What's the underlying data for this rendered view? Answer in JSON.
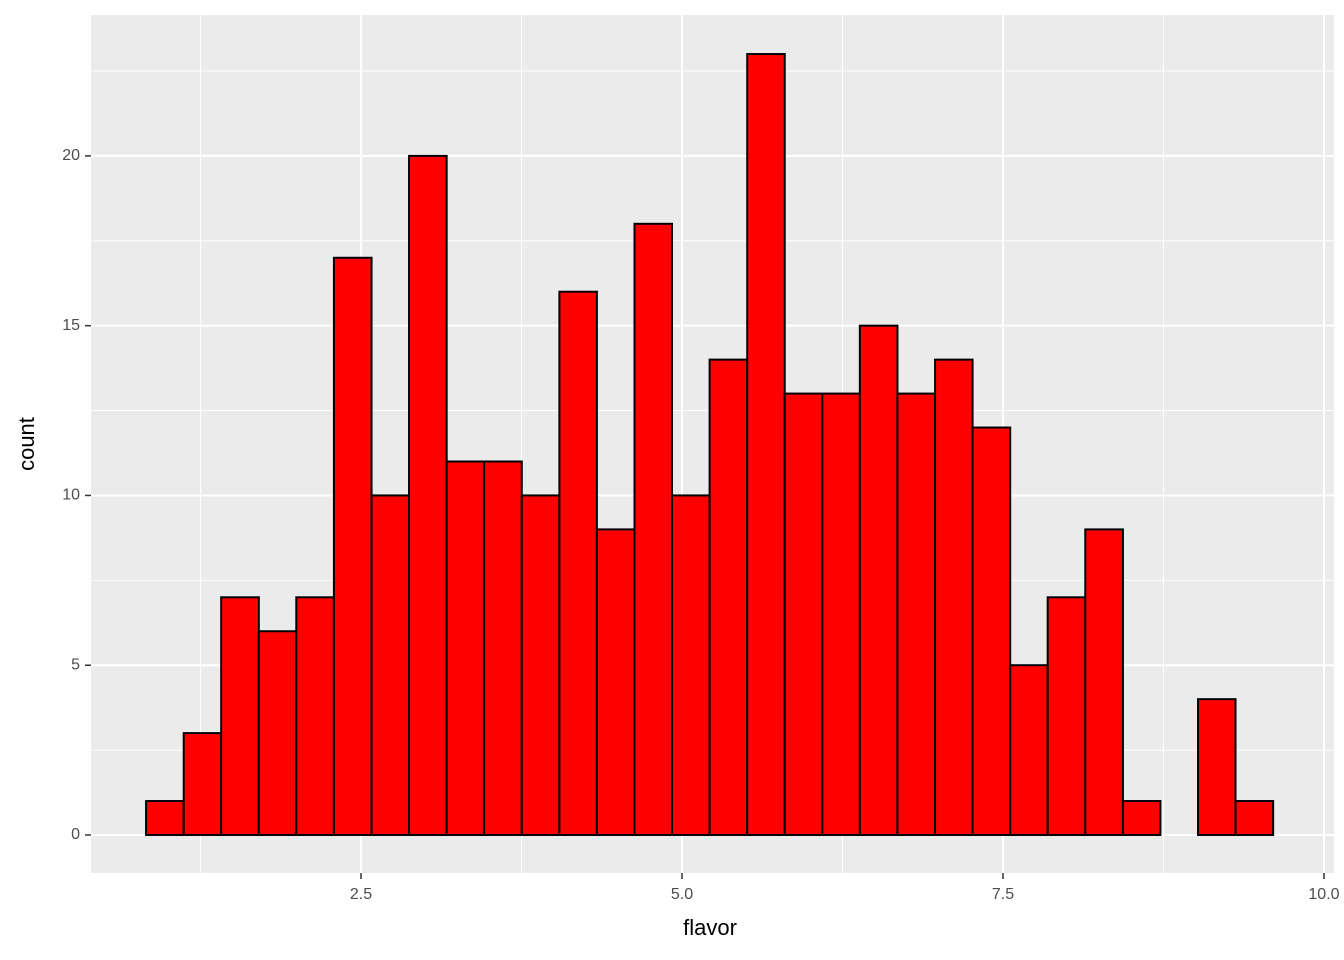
{
  "chart_data": {
    "type": "histogram",
    "x_label": "flavor",
    "y_label": "count",
    "bins": [
      0.826,
      1.119,
      1.411,
      1.704,
      1.996,
      2.289,
      2.582,
      2.874,
      3.167,
      3.459,
      3.752,
      4.045,
      4.337,
      4.63,
      4.922,
      5.215,
      5.508,
      5.8,
      6.093,
      6.385,
      6.678,
      6.971,
      7.263,
      7.556,
      7.848,
      8.141,
      8.434,
      8.726,
      9.019,
      9.311,
      9.604
    ],
    "values": [
      1,
      3,
      7,
      6,
      7,
      17,
      10,
      20,
      11,
      11,
      10,
      16,
      9,
      18,
      10,
      14,
      23,
      13,
      13,
      15,
      13,
      14,
      12,
      5,
      7,
      9,
      1,
      0,
      4,
      1
    ],
    "color": "#ff0000",
    "edgecolor": "#000000",
    "xlim": [
      0.397,
      10.078
    ],
    "ylim": [
      -1.12,
      24.15
    ],
    "xticks": [
      2.5,
      {
        "value": 5,
        "label": "5.0"
      },
      7.5,
      {
        "value": 10,
        "label": "10.0"
      }
    ],
    "yticks": [
      0,
      5,
      10,
      15,
      20
    ],
    "grid": true,
    "grid_minor": true
  }
}
